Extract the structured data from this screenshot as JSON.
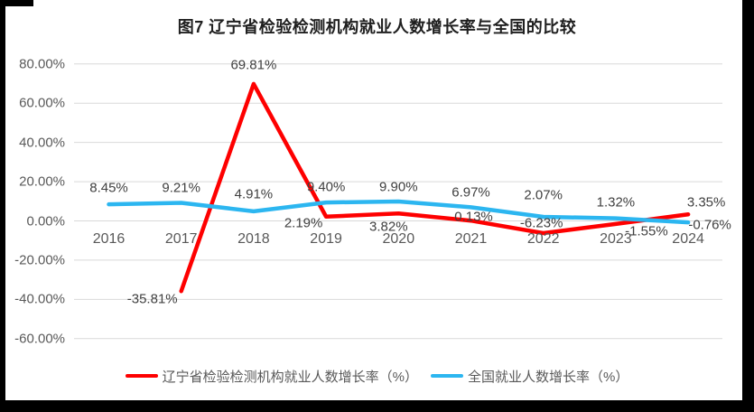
{
  "frame": {
    "border_color": "#000000"
  },
  "chart": {
    "title": "图7  辽宁省检验检测机构就业人数增长率与全国的比较",
    "legend": [
      {
        "label": "辽宁省检验检测机构就业人数增长率（%）",
        "color": "#fe0000"
      },
      {
        "label": "全国就业人数增长率（%）",
        "color": "#2cb6f0"
      }
    ]
  },
  "chart_data": {
    "type": "line",
    "title": "图7 辽宁省检验检测机构就业人数增长率与全国的比较",
    "categories": [
      "2016",
      "2017",
      "2018",
      "2019",
      "2020",
      "2021",
      "2022",
      "2023",
      "2024"
    ],
    "y_axis": {
      "ticks": [
        "80.00%",
        "60.00%",
        "40.00%",
        "20.00%",
        "0.00%",
        "-20.00%",
        "-40.00%",
        "-60.00%"
      ],
      "tick_values": [
        80,
        60,
        40,
        20,
        0,
        -20,
        -40,
        -60
      ],
      "min": -60,
      "max": 80,
      "grid": true,
      "grid_color": "#d9d9d9"
    },
    "legend_position": "bottom",
    "series": [
      {
        "name": "辽宁省检验检测机构就业人数增长率（%）",
        "color": "#fe0000",
        "points": [
          {
            "category": "2017",
            "value": -35.81,
            "label": "-35.81%",
            "dx": -32,
            "dy": 9
          },
          {
            "category": "2018",
            "value": 69.81,
            "label": "69.81%",
            "dx": 0,
            "dy": -21
          },
          {
            "category": "2019",
            "value": 2.19,
            "label": "2.19%",
            "dx": -25,
            "dy": 7
          },
          {
            "category": "2020",
            "value": 3.82,
            "label": "3.82%",
            "dx": -11,
            "dy": 15
          },
          {
            "category": "2021",
            "value": 0.13,
            "label": "0.13%",
            "dx": 3,
            "dy": -4
          },
          {
            "category": "2022",
            "value": -6.23,
            "label": "-6.23%",
            "dx": -2,
            "dy": -11
          },
          {
            "category": "2023",
            "value": -1.55,
            "label": "-1.55%",
            "dx": 34,
            "dy": 8
          },
          {
            "category": "2024",
            "value": 3.35,
            "label": "3.35%",
            "dx": 20,
            "dy": -13
          }
        ]
      },
      {
        "name": "全国就业人数增长率（%）",
        "color": "#2cb6f0",
        "points": [
          {
            "category": "2016",
            "value": 8.45,
            "label": "8.45%",
            "dx": 0,
            "dy": -18
          },
          {
            "category": "2017",
            "value": 9.21,
            "label": "9.21%",
            "dx": 0,
            "dy": -17
          },
          {
            "category": "2018",
            "value": 4.91,
            "label": "4.91%",
            "dx": 0,
            "dy": -19
          },
          {
            "category": "2019",
            "value": 9.4,
            "label": "9.40%",
            "dx": 0,
            "dy": -17
          },
          {
            "category": "2020",
            "value": 9.9,
            "label": "9.90%",
            "dx": 0,
            "dy": -16
          },
          {
            "category": "2021",
            "value": 6.97,
            "label": "6.97%",
            "dx": 0,
            "dy": -16
          },
          {
            "category": "2022",
            "value": 2.07,
            "label": "2.07%",
            "dx": 0,
            "dy": -24
          },
          {
            "category": "2023",
            "value": 1.32,
            "label": "1.32%",
            "dx": 0,
            "dy": -18
          },
          {
            "category": "2024",
            "value": -0.76,
            "label": "-0.76%",
            "dx": 24,
            "dy": 3
          }
        ]
      }
    ]
  }
}
